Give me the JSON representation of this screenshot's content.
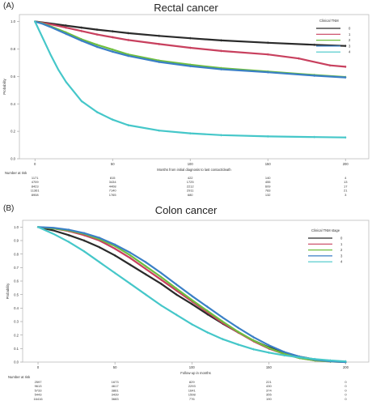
{
  "chart_data": [
    {
      "panel_label": "(A)",
      "type": "line",
      "title": "Rectal cancer",
      "xlabel": "Months from initial diagnosis to last contact/death",
      "ylabel": "Probability",
      "xlim": [
        -10,
        215
      ],
      "ylim": [
        0,
        1.05
      ],
      "xticks": [
        0,
        50,
        100,
        150,
        200
      ],
      "xtick_labels": [
        "0",
        "50",
        "100",
        "150",
        "200"
      ],
      "yticks": [
        0,
        0.2,
        0.4,
        0.6,
        0.8,
        1.0
      ],
      "ytick_labels": [
        "0.0",
        "0.2",
        "0.4",
        "0.6",
        "0.8",
        "1.0"
      ],
      "legend_title": "Clinical TNM",
      "legend_position": "top-right",
      "series": [
        {
          "name": "0",
          "color": "#2a2a2a",
          "x": [
            0,
            5,
            10,
            20,
            30,
            40,
            50,
            60,
            80,
            100,
            120,
            150,
            180,
            200
          ],
          "y": [
            1.0,
            0.993,
            0.985,
            0.97,
            0.955,
            0.94,
            0.928,
            0.915,
            0.895,
            0.878,
            0.862,
            0.845,
            0.83,
            0.822
          ]
        },
        {
          "name": "1",
          "color": "#c8405e",
          "x": [
            0,
            5,
            10,
            20,
            30,
            40,
            50,
            60,
            80,
            100,
            120,
            150,
            170,
            190,
            200
          ],
          "y": [
            1.0,
            0.99,
            0.98,
            0.955,
            0.93,
            0.905,
            0.885,
            0.865,
            0.835,
            0.808,
            0.785,
            0.76,
            0.73,
            0.68,
            0.67
          ]
        },
        {
          "name": "2",
          "color": "#6fbf3f",
          "x": [
            0,
            5,
            10,
            20,
            30,
            40,
            50,
            60,
            80,
            100,
            120,
            150,
            180,
            200
          ],
          "y": [
            1.0,
            0.985,
            0.965,
            0.92,
            0.87,
            0.83,
            0.795,
            0.76,
            0.715,
            0.685,
            0.66,
            0.635,
            0.61,
            0.595
          ]
        },
        {
          "name": "3",
          "color": "#3a7fc6",
          "x": [
            0,
            5,
            10,
            20,
            30,
            40,
            50,
            60,
            80,
            100,
            120,
            150,
            180,
            200
          ],
          "y": [
            1.0,
            0.982,
            0.96,
            0.91,
            0.86,
            0.815,
            0.78,
            0.75,
            0.705,
            0.675,
            0.652,
            0.63,
            0.605,
            0.592
          ]
        },
        {
          "name": "4",
          "color": "#45c7c9",
          "x": [
            0,
            5,
            10,
            15,
            20,
            30,
            40,
            50,
            60,
            80,
            100,
            120,
            150,
            180,
            200
          ],
          "y": [
            1.0,
            0.88,
            0.76,
            0.65,
            0.56,
            0.42,
            0.34,
            0.285,
            0.245,
            0.205,
            0.185,
            0.172,
            0.163,
            0.158,
            0.155
          ]
        }
      ],
      "risk_table": {
        "title": "Number at risk",
        "times": [
          0,
          50,
          100,
          150,
          200
        ],
        "rows": [
          [
            "1171",
            "815",
            "422",
            "140",
            "4"
          ],
          [
            "4709",
            "3434",
            "1725",
            "455",
            "13"
          ],
          [
            "8423",
            "4408",
            "2212",
            "609",
            "17"
          ],
          [
            "11361",
            "7140",
            "2911",
            "783",
            "21"
          ],
          [
            "8908",
            "1765",
            "680",
            "132",
            "3"
          ]
        ]
      }
    },
    {
      "panel_label": "(B)",
      "type": "line",
      "title": "Colon cancer",
      "xlabel": "Follow-up in months",
      "ylabel": "Probability",
      "xlim": [
        -10,
        215
      ],
      "ylim": [
        0,
        1.05
      ],
      "xticks": [
        0,
        50,
        100,
        150,
        200
      ],
      "xtick_labels": [
        "0",
        "50",
        "100",
        "150",
        "200"
      ],
      "yticks": [
        0,
        0.1,
        0.2,
        0.3,
        0.4,
        0.5,
        0.6,
        0.7,
        0.8,
        0.9,
        1.0
      ],
      "ytick_labels": [
        "0.0",
        "0.1",
        "0.2",
        "0.3",
        "0.4",
        "0.5",
        "0.6",
        "0.7",
        "0.8",
        "0.9",
        "1.0"
      ],
      "legend_title": "Clinical TNM stage",
      "legend_position": "top-right",
      "series": [
        {
          "name": "0",
          "color": "#2a2a2a",
          "x": [
            0,
            10,
            20,
            30,
            40,
            50,
            60,
            70,
            80,
            90,
            100,
            110,
            120,
            130,
            140,
            150,
            160,
            170,
            180,
            190,
            200
          ],
          "y": [
            1.0,
            0.975,
            0.94,
            0.9,
            0.85,
            0.79,
            0.72,
            0.65,
            0.58,
            0.5,
            0.43,
            0.355,
            0.285,
            0.22,
            0.16,
            0.11,
            0.07,
            0.04,
            0.02,
            0.008,
            0.0
          ]
        },
        {
          "name": "1",
          "color": "#c8405e",
          "x": [
            0,
            10,
            20,
            30,
            40,
            50,
            60,
            70,
            80,
            90,
            100,
            110,
            120,
            130,
            140,
            150,
            160,
            170,
            180,
            190,
            200
          ],
          "y": [
            1.0,
            0.99,
            0.97,
            0.94,
            0.9,
            0.84,
            0.77,
            0.69,
            0.61,
            0.53,
            0.45,
            0.37,
            0.29,
            0.22,
            0.155,
            0.1,
            0.06,
            0.03,
            0.012,
            0.004,
            0.0
          ]
        },
        {
          "name": "2",
          "color": "#6fbf3f",
          "x": [
            0,
            10,
            20,
            30,
            40,
            50,
            60,
            70,
            80,
            90,
            100,
            110,
            120,
            130,
            140,
            150,
            160,
            170,
            180,
            190,
            200
          ],
          "y": [
            1.0,
            0.99,
            0.975,
            0.95,
            0.91,
            0.86,
            0.79,
            0.71,
            0.63,
            0.545,
            0.46,
            0.38,
            0.3,
            0.225,
            0.16,
            0.105,
            0.06,
            0.03,
            0.012,
            0.004,
            0.0
          ]
        },
        {
          "name": "3",
          "color": "#3a7fc6",
          "x": [
            0,
            10,
            20,
            30,
            40,
            50,
            60,
            70,
            80,
            90,
            100,
            110,
            120,
            130,
            140,
            150,
            160,
            170,
            180,
            190,
            200
          ],
          "y": [
            1.0,
            0.995,
            0.98,
            0.955,
            0.92,
            0.87,
            0.81,
            0.74,
            0.66,
            0.575,
            0.49,
            0.41,
            0.33,
            0.255,
            0.185,
            0.125,
            0.075,
            0.04,
            0.018,
            0.006,
            0.0
          ]
        },
        {
          "name": "4",
          "color": "#45c7c9",
          "x": [
            0,
            10,
            20,
            30,
            40,
            50,
            60,
            70,
            80,
            90,
            100,
            110,
            120,
            130,
            140,
            150,
            160,
            170,
            180,
            190,
            200
          ],
          "y": [
            1.0,
            0.95,
            0.89,
            0.82,
            0.74,
            0.66,
            0.58,
            0.5,
            0.42,
            0.35,
            0.28,
            0.22,
            0.17,
            0.13,
            0.095,
            0.07,
            0.05,
            0.035,
            0.022,
            0.012,
            0.005
          ]
        }
      ],
      "risk_table": {
        "title": "Number at risk",
        "times": [
          0,
          50,
          100,
          150,
          200
        ],
        "rows": [
          [
            "2597",
            "1673",
            "829",
            "221",
            "0"
          ],
          [
            "9613",
            "4617",
            "2293",
            "430",
            "0"
          ],
          [
            "5733",
            "3861",
            "1641",
            "374",
            "0"
          ],
          [
            "5443",
            "3439",
            "1598",
            "355",
            "0"
          ],
          [
            "16416",
            "3683",
            "776",
            "190",
            "0"
          ]
        ]
      }
    }
  ]
}
